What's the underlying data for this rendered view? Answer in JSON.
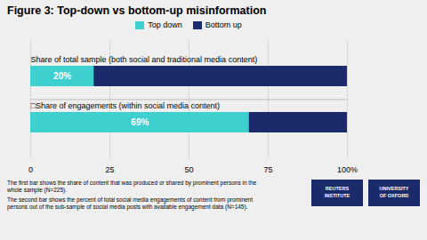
{
  "chart_data": {
    "type": "bar",
    "title": "Figure 3: Top-down vs bottom-up misinformation",
    "orientation": "horizontal",
    "stacked": true,
    "categories": [
      "Share of total sample (both social and traditional media content)",
      "□Share of engagements (within social media content)"
    ],
    "series": [
      {
        "name": "Top down",
        "color": "#3ECFCF",
        "values": [
          20,
          69
        ],
        "data_labels": true,
        "value_labels": [
          "20%",
          "69%"
        ]
      },
      {
        "name": "Bottom up",
        "color": "#1B2A6B",
        "values": [
          80,
          31
        ]
      }
    ],
    "xlim": [
      0,
      100
    ],
    "xticks": [
      0,
      25,
      50,
      75,
      {
        "value": 100,
        "label": "100%"
      }
    ],
    "grid": true,
    "legend": "top",
    "annotations": [
      "The first bar shows the share of content that was produced or shared by prominent persons in the\nwhole sample (N=225).",
      "The second bar shows the percent of total social media engagements of content from prominent\npersons out of the sub-sample of social media posts with available engagement data (N=145).",
      "REUTERS\nINSTITUTE",
      "UNIVERSITY\nOF OXFORD"
    ]
  }
}
